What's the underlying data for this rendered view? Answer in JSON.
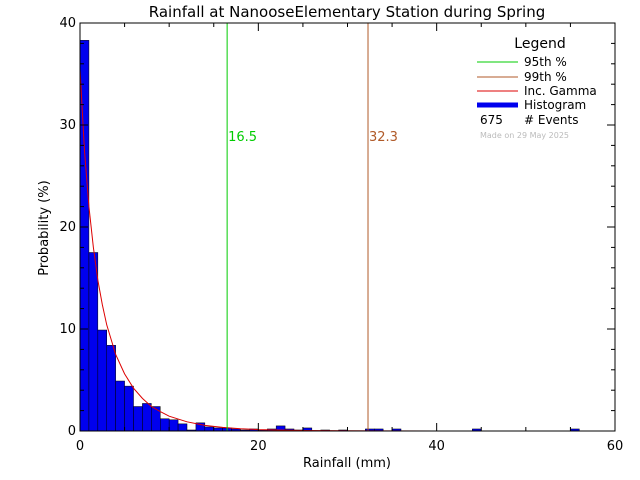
{
  "chart_data": {
    "type": "bar",
    "title": "Rainfall at NanooseElementary Station during Spring",
    "xlabel": "Rainfall (mm)",
    "ylabel": "Probability (%)",
    "xlim": [
      0,
      60
    ],
    "ylim": [
      0,
      40
    ],
    "xticks": [
      "0",
      "20",
      "40",
      "60"
    ],
    "yticks": [
      "0",
      "10",
      "20",
      "30",
      "40"
    ],
    "bin_width": 1,
    "histogram_values": [
      38.3,
      17.5,
      9.9,
      8.4,
      4.9,
      4.4,
      2.4,
      2.7,
      2.4,
      1.2,
      1.1,
      0.7,
      0.1,
      0.8,
      0.4,
      0.3,
      0.3,
      0.2,
      0.1,
      0.2,
      0.1,
      0.2,
      0.5,
      0.2,
      0.1,
      0.3,
      0,
      0.1,
      0,
      0.1,
      0,
      0,
      0.2,
      0.2,
      0,
      0.2,
      0,
      0,
      0,
      0,
      0,
      0,
      0,
      0,
      0.2,
      0,
      0,
      0,
      0,
      0,
      0,
      0,
      0,
      0,
      0,
      0.2,
      0,
      0,
      0,
      0
    ],
    "gamma_curve": {
      "x": [
        0,
        0.5,
        1,
        1.5,
        2,
        2.5,
        3,
        4,
        5,
        6,
        7,
        8,
        9,
        10,
        12,
        14,
        16,
        18,
        20,
        25,
        30,
        40,
        50,
        60
      ],
      "y": [
        35.5,
        27.5,
        22.0,
        18.0,
        14.8,
        12.4,
        10.4,
        7.5,
        5.6,
        4.2,
        3.2,
        2.4,
        1.9,
        1.45,
        0.9,
        0.55,
        0.35,
        0.22,
        0.14,
        0.05,
        0.02,
        0.003,
        0.0005,
        0.0001
      ]
    },
    "percentile_95": 16.5,
    "percentile_99": 32.3,
    "events": 675,
    "legend": {
      "title": "Legend",
      "p95_label": "95th %",
      "p99_label": "99th %",
      "gamma_label": "Inc. Gamma",
      "hist_label": "Histogram",
      "events_count": "675",
      "events_label": "# Events",
      "made_on": "Made on 29 May 2025"
    },
    "annotations": {
      "p95_text": "16.5",
      "p99_text": "32.3"
    },
    "colors": {
      "histogram": "#0000ee",
      "p95": "#00cc00",
      "p99": "#b05a28",
      "gamma": "#dd0000",
      "made_on": "#bbbbbb"
    }
  }
}
